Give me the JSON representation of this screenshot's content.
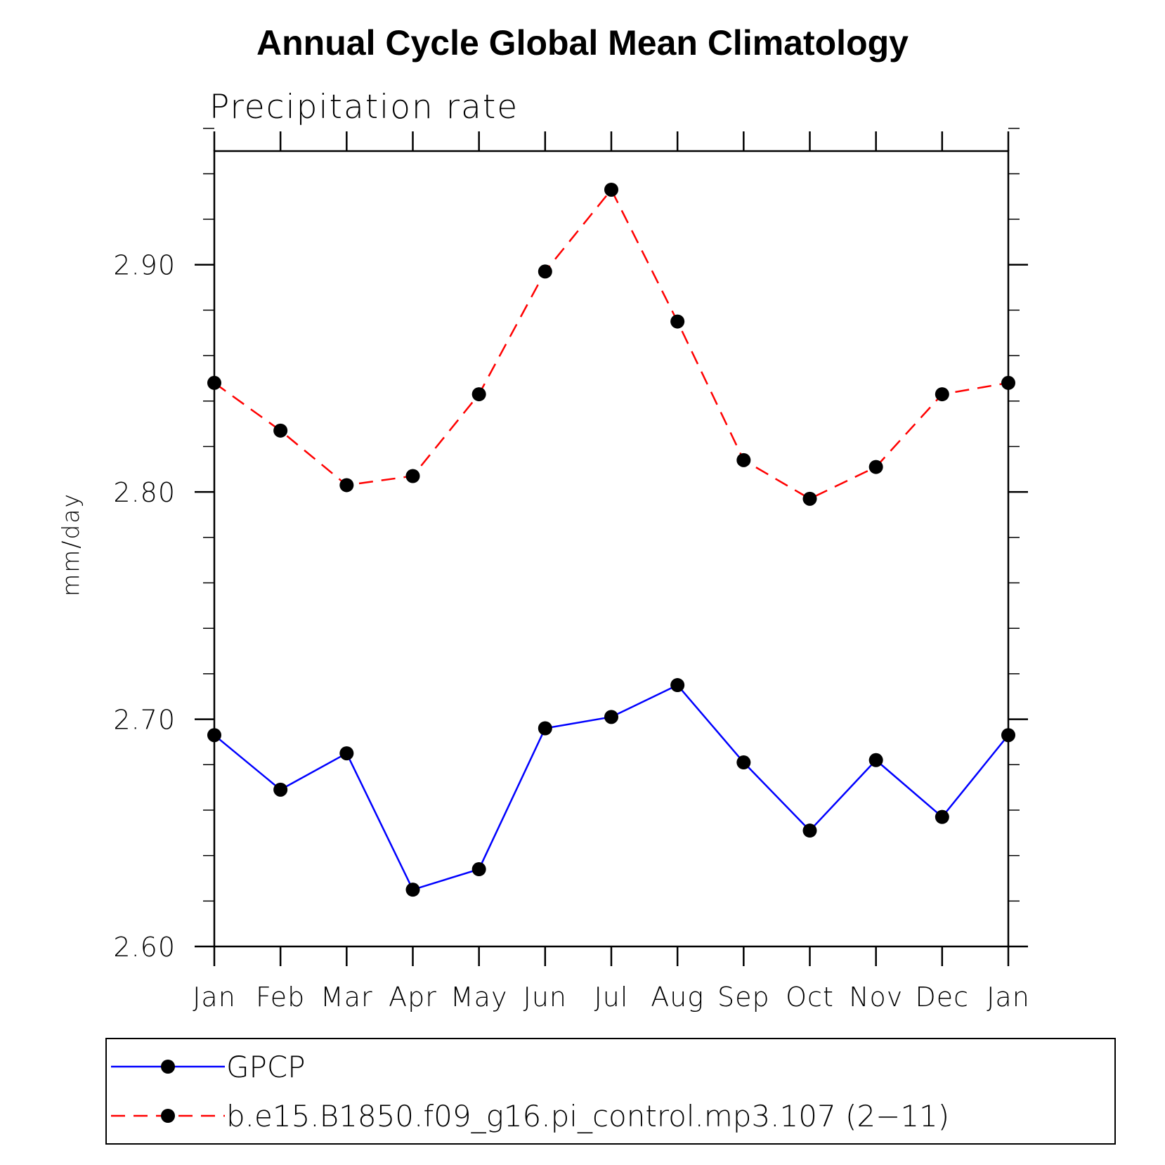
{
  "chart_data": {
    "type": "line",
    "title": "Annual Cycle Global Mean Climatology",
    "subtitle": "Precipitation rate",
    "xlabel": "",
    "ylabel": "mm/day",
    "categories": [
      "Jan",
      "Feb",
      "Mar",
      "Apr",
      "May",
      "Jun",
      "Jul",
      "Aug",
      "Sep",
      "Oct",
      "Nov",
      "Dec",
      "Jan"
    ],
    "ylim": [
      2.6,
      2.95
    ],
    "yticks": [
      "2.60",
      "2.70",
      "2.80",
      "2.90"
    ],
    "y_minor_step": 0.02,
    "grid": false,
    "legend_position": "bottom",
    "series": [
      {
        "name": "GPCP",
        "color": "#0000ff",
        "line_style": "solid",
        "marker": "filled-circle",
        "values": [
          2.693,
          2.669,
          2.685,
          2.625,
          2.634,
          2.696,
          2.701,
          2.715,
          2.681,
          2.651,
          2.682,
          2.657,
          2.693
        ]
      },
      {
        "name": "b.e15.B1850.f09_g16.pi_control.mp3.107 (2−11)",
        "color": "#ff0000",
        "line_style": "dashed",
        "marker": "filled-circle",
        "values": [
          2.848,
          2.827,
          2.803,
          2.807,
          2.843,
          2.897,
          2.933,
          2.875,
          2.814,
          2.797,
          2.811,
          2.843,
          2.848
        ]
      }
    ]
  }
}
